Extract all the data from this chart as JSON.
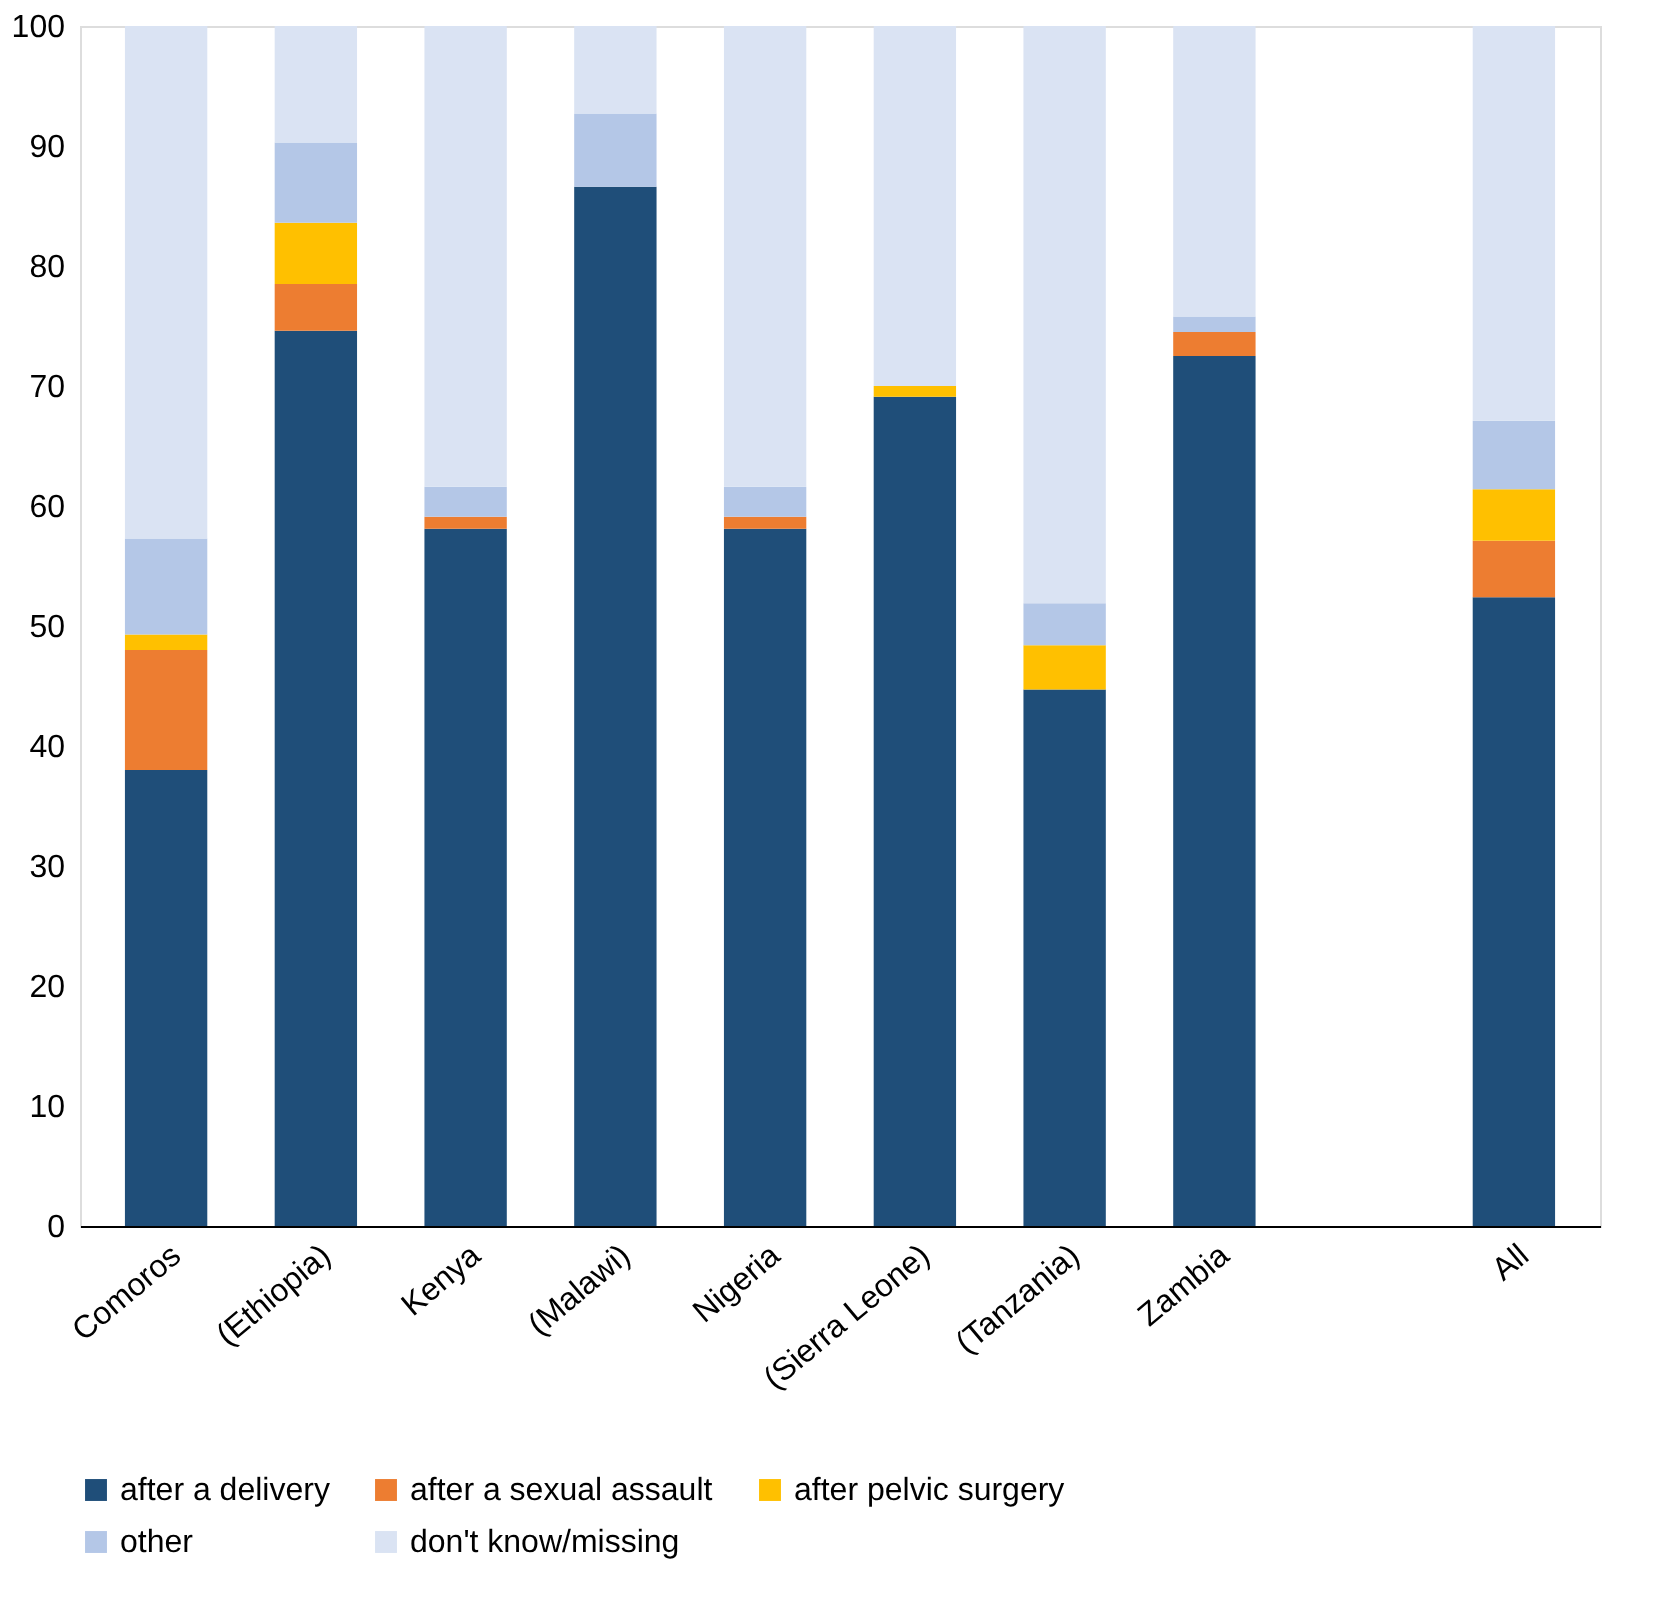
{
  "chart_data": {
    "type": "bar",
    "stacked": true,
    "categories": [
      "Comoros",
      "(Ethiopia)",
      "Kenya",
      "(Malawi)",
      "Nigeria",
      "(Sierra Leone)",
      "(Tanzania)",
      "Zambia",
      null,
      "All"
    ],
    "series": [
      {
        "name": "after a delivery",
        "color": "#1f4e79",
        "values": [
          38,
          74.6,
          58.1,
          86.6,
          58.1,
          69.1,
          44.7,
          72.5,
          null,
          52.4
        ]
      },
      {
        "name": "after a sexual assault",
        "color": "#ed7d31",
        "values": [
          10,
          3.9,
          1.0,
          null,
          1.0,
          null,
          null,
          2.0,
          null,
          4.7
        ]
      },
      {
        "name": "after pelvic surgery",
        "color": "#ffc000",
        "values": [
          1.3,
          5.1,
          null,
          null,
          null,
          0.9,
          3.7,
          null,
          null,
          4.3
        ]
      },
      {
        "name": "other",
        "color": "#b4c7e7",
        "values": [
          8,
          6.7,
          2.5,
          6.1,
          2.5,
          null,
          3.5,
          1.3,
          null,
          5.7
        ]
      },
      {
        "name": "don't know/missing",
        "color": "#dae3f3",
        "values": [
          42.7,
          9.7,
          38.4,
          7.3,
          38.4,
          30,
          48.1,
          24.2,
          null,
          32.9
        ]
      }
    ],
    "ylim": [
      0,
      100
    ],
    "yticks": [
      0,
      10,
      20,
      30,
      40,
      50,
      60,
      70,
      80,
      90,
      100
    ],
    "grid": false,
    "legend": "bottom"
  }
}
